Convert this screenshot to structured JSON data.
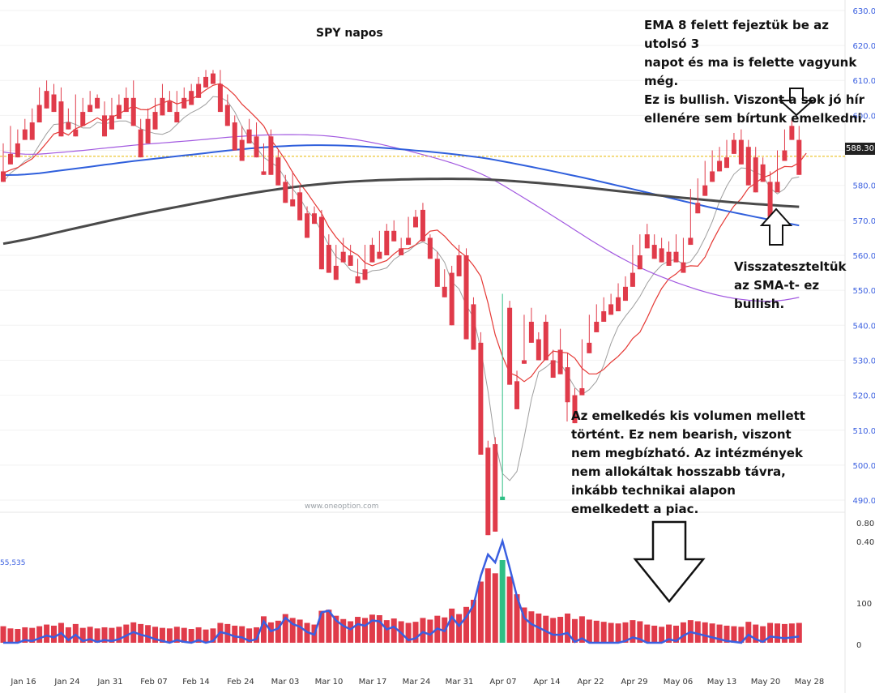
{
  "title": "SPY napos",
  "watermark": "www.oneoption.com",
  "last_price": "588.30",
  "volume_label": "55,535",
  "annotations": {
    "top_right": [
      "EMA 8 felett fejeztük be az utolsó 3",
      "napot és ma is felette vagyunk még.",
      "Ez is bullish. Viszont a sok jó hír",
      "ellenére sem bírtunk emelkedni."
    ],
    "right_mid": [
      "Visszateszteltük",
      "az SMA-t- ez",
      "bullish."
    ],
    "volume_note": [
      "Az emelkedés kis volumen mellett",
      "történt. Ez nem bearish, viszont",
      "nem megbízható. Az intézmények",
      "nem allokáltak hosszabb távra,",
      "inkább technikai alapon",
      "emelkedett a piac."
    ]
  },
  "colors": {
    "up": "#2fbf85",
    "down": "#e03b4a",
    "ema8": "#e53935",
    "sma5": "#9e9e9e",
    "sma50": "#a259e0",
    "sma100": "#2f5fdc",
    "sma200": "#4a4a4a",
    "level": "#e6b800",
    "indicator": "#3a5fe0"
  },
  "chart_data": {
    "type": "candlestick",
    "title": "SPY napos",
    "y_ticks": [
      "630.00",
      "620.00",
      "610.00",
      "600.00",
      "590.00",
      "580.00",
      "570.00",
      "560.00",
      "550.00",
      "540.00",
      "530.00",
      "520.00",
      "510.00",
      "500.00",
      "490.00"
    ],
    "indicator_ticks": [
      "0.80",
      "0.40"
    ],
    "volume_ticks": [
      "100 M",
      "0"
    ],
    "x_ticks": [
      "Jan 16",
      "Jan 24",
      "Jan 31",
      "Feb 07",
      "Feb 14",
      "Feb 24",
      "Mar 03",
      "Mar 10",
      "Mar 17",
      "Mar 24",
      "Mar 31",
      "Apr 07",
      "Apr 14",
      "Apr 22",
      "Apr 29",
      "May 06",
      "May 13",
      "May 20",
      "May 28"
    ],
    "ylim": [
      487,
      633
    ],
    "horizontal_level": 588.3,
    "candles": [
      [
        584,
        592,
        582,
        581,
        30
      ],
      [
        589,
        597,
        587,
        586,
        26
      ],
      [
        592,
        596,
        590,
        588,
        25
      ],
      [
        596,
        599,
        594,
        593,
        28
      ],
      [
        598,
        602,
        594,
        593,
        27
      ],
      [
        603,
        608,
        599,
        598,
        30
      ],
      [
        607,
        610,
        603,
        602,
        33
      ],
      [
        606,
        609,
        602,
        601,
        31
      ],
      [
        604,
        608,
        595,
        594,
        36
      ],
      [
        598,
        602,
        597,
        596,
        28
      ],
      [
        596,
        606,
        595,
        594,
        34
      ],
      [
        601,
        605,
        598,
        597,
        27
      ],
      [
        603,
        607,
        602,
        601,
        29
      ],
      [
        605,
        606,
        603,
        602,
        26
      ],
      [
        600,
        604,
        595,
        594,
        28
      ],
      [
        600,
        605,
        597,
        596,
        27
      ],
      [
        603,
        606,
        600,
        599,
        29
      ],
      [
        605,
        608,
        602,
        601,
        33
      ],
      [
        605,
        610,
        598,
        597,
        37
      ],
      [
        596,
        599,
        589,
        588,
        34
      ],
      [
        599,
        602,
        593,
        592,
        32
      ],
      [
        601,
        605,
        597,
        596,
        29
      ],
      [
        605,
        609,
        601,
        600,
        27
      ],
      [
        604,
        607,
        602,
        601,
        26
      ],
      [
        601,
        607,
        599,
        598,
        29
      ],
      [
        605,
        608,
        603,
        602,
        27
      ],
      [
        607,
        609,
        604,
        603,
        25
      ],
      [
        609,
        611,
        606,
        605,
        28
      ],
      [
        611,
        613,
        609,
        608,
        24
      ],
      [
        612,
        613,
        610,
        609,
        26
      ],
      [
        609,
        613,
        602,
        601,
        36
      ],
      [
        603,
        606,
        598,
        597,
        34
      ],
      [
        598,
        600,
        591,
        590,
        31
      ],
      [
        593,
        597,
        588,
        587,
        30
      ],
      [
        596,
        599,
        593,
        592,
        26
      ],
      [
        594,
        598,
        589,
        588,
        28
      ],
      [
        584,
        592,
        584,
        583,
        48
      ],
      [
        594,
        596,
        584,
        583,
        37
      ],
      [
        588,
        590,
        581,
        580,
        40
      ],
      [
        581,
        583,
        576,
        575,
        52
      ],
      [
        576,
        584,
        575,
        574,
        45
      ],
      [
        578,
        580,
        571,
        570,
        42
      ],
      [
        572,
        574,
        566,
        565,
        36
      ],
      [
        572,
        574,
        570,
        569,
        33
      ],
      [
        571,
        573,
        557,
        556,
        58
      ],
      [
        563,
        566,
        556,
        555,
        60
      ],
      [
        557,
        563,
        554,
        553,
        49
      ],
      [
        561,
        565,
        559,
        558,
        43
      ],
      [
        560,
        563,
        558,
        557,
        39
      ],
      [
        554,
        559,
        553,
        552,
        47
      ],
      [
        556,
        563,
        554,
        553,
        45
      ],
      [
        563,
        565,
        559,
        558,
        51
      ],
      [
        561,
        567,
        560,
        559,
        50
      ],
      [
        567,
        569,
        561,
        560,
        41
      ],
      [
        567,
        570,
        565,
        564,
        44
      ],
      [
        562,
        565,
        561,
        560,
        39
      ],
      [
        565,
        571,
        564,
        563,
        36
      ],
      [
        571,
        573,
        569,
        568,
        38
      ],
      [
        573,
        575,
        565,
        564,
        45
      ],
      [
        565,
        566,
        560,
        559,
        42
      ],
      [
        559,
        561,
        552,
        551,
        49
      ],
      [
        551,
        556,
        549,
        548,
        46
      ],
      [
        555,
        557,
        541,
        540,
        62
      ],
      [
        560,
        563,
        555,
        554,
        52
      ],
      [
        560,
        562,
        537,
        536,
        65
      ],
      [
        546,
        548,
        534,
        533,
        78
      ],
      [
        535,
        538,
        504,
        503,
        111
      ],
      [
        505,
        507,
        481,
        480,
        135
      ],
      [
        506,
        508,
        482,
        481,
        126
      ],
      [
        490,
        549,
        492,
        491,
        150
      ],
      [
        545,
        547,
        524,
        523,
        120
      ],
      [
        524,
        527,
        517,
        516,
        88
      ],
      [
        530,
        543,
        530,
        529,
        64
      ],
      [
        541,
        545,
        536,
        535,
        57
      ],
      [
        536,
        538,
        531,
        530,
        53
      ],
      [
        541,
        543,
        531,
        530,
        49
      ],
      [
        530,
        533,
        526,
        525,
        45
      ],
      [
        533,
        539,
        527,
        526,
        47
      ],
      [
        528,
        532,
        519,
        518,
        53
      ],
      [
        520,
        522,
        513,
        512,
        43
      ],
      [
        522,
        536,
        521,
        520,
        48
      ],
      [
        535,
        543,
        533,
        532,
        42
      ],
      [
        541,
        546,
        539,
        538,
        40
      ],
      [
        544,
        548,
        542,
        541,
        38
      ],
      [
        546,
        549,
        544,
        543,
        36
      ],
      [
        548,
        552,
        545,
        544,
        35
      ],
      [
        551,
        554,
        548,
        547,
        37
      ],
      [
        555,
        563,
        552,
        551,
        41
      ],
      [
        560,
        566,
        557,
        556,
        39
      ],
      [
        566,
        569,
        563,
        562,
        33
      ],
      [
        563,
        566,
        560,
        559,
        31
      ],
      [
        562,
        565,
        559,
        558,
        29
      ],
      [
        561,
        564,
        558,
        557,
        33
      ],
      [
        561,
        566,
        559,
        558,
        31
      ],
      [
        558,
        565,
        556,
        555,
        37
      ],
      [
        565,
        579,
        564,
        563,
        41
      ],
      [
        575,
        582,
        573,
        572,
        39
      ],
      [
        580,
        587,
        578,
        577,
        37
      ],
      [
        584,
        590,
        582,
        581,
        35
      ],
      [
        587,
        591,
        585,
        584,
        33
      ],
      [
        588,
        593,
        586,
        585,
        31
      ],
      [
        593,
        595,
        590,
        589,
        30
      ],
      [
        593,
        596,
        587,
        586,
        29
      ],
      [
        591,
        593,
        581,
        580,
        38
      ],
      [
        588,
        591,
        579,
        578,
        33
      ],
      [
        586,
        588,
        582,
        581,
        30
      ],
      [
        581,
        584,
        572,
        571,
        36
      ],
      [
        581,
        590,
        579,
        578,
        35
      ],
      [
        590,
        596,
        588,
        587,
        34
      ],
      [
        597,
        599,
        594,
        593,
        35
      ],
      [
        593,
        597,
        584,
        583,
        36
      ]
    ],
    "ema8": [
      583.5,
      584.4,
      585.1,
      586.4,
      587.6,
      589.7,
      592.2,
      594.7,
      595.4,
      594.4,
      596.2,
      597.0,
      598.1,
      599.3,
      598.2,
      599.5,
      600.4,
      601.7,
      602.6,
      601.7,
      601.6,
      602.7,
      603.5,
      604.3,
      603.3,
      603.9,
      604.6,
      605.8,
      607.3,
      608.6,
      609.1,
      607.7,
      605.8,
      603.2,
      601.3,
      599.2,
      597.0,
      593.1,
      590.3,
      587.2,
      583.7,
      580.6,
      577.9,
      574.9,
      572.0,
      568.1,
      565.2,
      562.9,
      561.3,
      560.1,
      557.9,
      557.0,
      557.8,
      558.5,
      560.4,
      561.9,
      561.9,
      563.0,
      565.0,
      566.9,
      567.2,
      565.5,
      563.2,
      561.2,
      559.6,
      557.1,
      554.0,
      546.4,
      537.3,
      531.1,
      526.4,
      525.5,
      523.9,
      525.4,
      528.2,
      530.5,
      532.6,
      532.3,
      532.1,
      530.6,
      527.7,
      526.1,
      526.1,
      527.4,
      529.4,
      531.1,
      533.3,
      536.2,
      538.0,
      542.1,
      546.6,
      550.5,
      553.3,
      554.7,
      556.6,
      557.0,
      556.9,
      559.5,
      563.9,
      567.8,
      571.1,
      574.1,
      576.2,
      579.2,
      580.7,
      582.2,
      583.0,
      584.4,
      585.4,
      585.3,
      586.5,
      589.2
    ]
  }
}
